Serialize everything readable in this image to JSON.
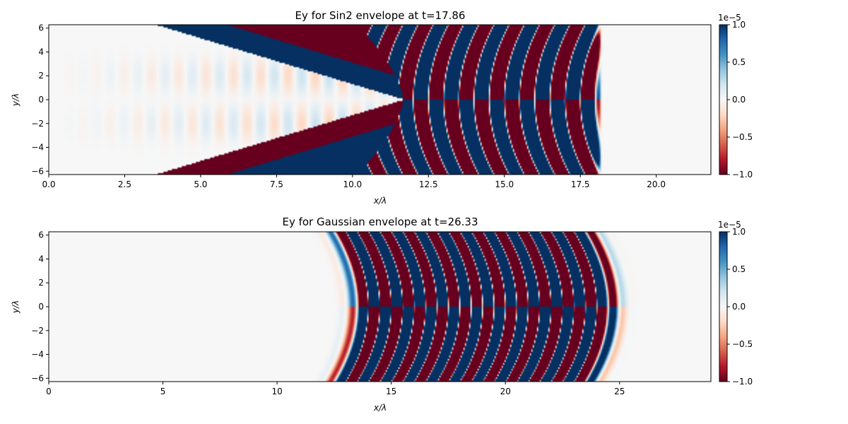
{
  "chart_data": [
    {
      "type": "heatmap",
      "title": "Ey for Sin2 envelope at t=17.86",
      "xlabel": "x/λ",
      "ylabel": "y/λ",
      "xlim": [
        0,
        21.8
      ],
      "ylim": [
        -6.28,
        6.28
      ],
      "xticks": [
        0,
        2.5,
        5,
        7.5,
        10,
        12.5,
        15,
        17.5,
        20
      ],
      "xtick_labels": [
        "0.0",
        "2.5",
        "5.0",
        "7.5",
        "10.0",
        "12.5",
        "15.0",
        "17.5",
        "20.0"
      ],
      "yticks": [
        6,
        4,
        2,
        0,
        -2,
        -4,
        -6
      ],
      "ytick_labels": [
        "6",
        "4",
        "2",
        "0",
        "−2",
        "−4",
        "−6"
      ],
      "colorbar": {
        "colormap": "RdBu",
        "min_color": "#67001f",
        "mid_color": "#f7f7f7",
        "max_color": "#053061",
        "range": [
          -1.0,
          1.0
        ],
        "ticks": [
          1.0,
          0.5,
          0.0,
          -0.5,
          -1.0
        ],
        "tick_labels": [
          "1.0",
          "0.5",
          "0.0",
          "−0.5",
          "−1.0"
        ],
        "offset_label": "1e−5"
      },
      "field": {
        "pulse_front_x": 18.2,
        "wavelength": 1.0,
        "saturated_region_start_x": 10.5,
        "wake_start_x": 0.5
      }
    },
    {
      "type": "heatmap",
      "title": "Ey for Gaussian envelope at t=26.33",
      "xlabel": "x/λ",
      "ylabel": "y/λ",
      "xlim": [
        0,
        29
      ],
      "ylim": [
        -6.28,
        6.28
      ],
      "xticks": [
        0,
        5,
        10,
        15,
        20,
        25
      ],
      "xtick_labels": [
        "0",
        "5",
        "10",
        "15",
        "20",
        "25"
      ],
      "yticks": [
        6,
        4,
        2,
        0,
        -2,
        -4,
        -6
      ],
      "ytick_labels": [
        "6",
        "4",
        "2",
        "0",
        "−2",
        "−4",
        "−6"
      ],
      "colorbar": {
        "colormap": "RdBu",
        "min_color": "#67001f",
        "mid_color": "#f7f7f7",
        "max_color": "#053061",
        "range": [
          -1.0,
          1.0
        ],
        "ticks": [
          1.0,
          0.5,
          0.0,
          -0.5,
          -1.0
        ],
        "tick_labels": [
          "1.0",
          "0.5",
          "0.0",
          "−0.5",
          "−1.0"
        ],
        "offset_label": "1e−5"
      },
      "field": {
        "pulse_front_x": 25.5,
        "pulse_back_x": 12.8,
        "wavelength": 1.0,
        "saturated_region_start_x": 13.9,
        "saturated_region_end_x": 24.4
      }
    }
  ]
}
